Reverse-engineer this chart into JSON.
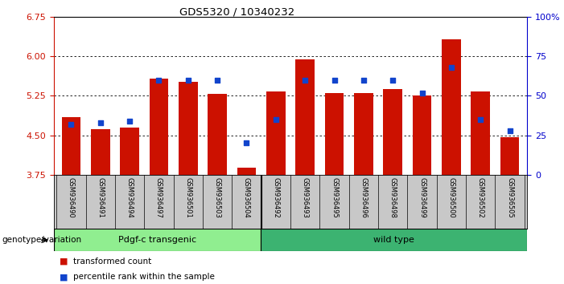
{
  "title": "GDS5320 / 10340232",
  "samples": [
    "GSM936490",
    "GSM936491",
    "GSM936494",
    "GSM936497",
    "GSM936501",
    "GSM936503",
    "GSM936504",
    "GSM936492",
    "GSM936493",
    "GSM936495",
    "GSM936496",
    "GSM936498",
    "GSM936499",
    "GSM936500",
    "GSM936502",
    "GSM936505"
  ],
  "bar_values": [
    4.85,
    4.62,
    4.65,
    5.58,
    5.52,
    5.29,
    3.88,
    5.33,
    5.95,
    5.3,
    5.3,
    5.38,
    5.26,
    6.32,
    5.34,
    4.46
  ],
  "dot_values_pct": [
    32,
    33,
    34,
    60,
    60,
    60,
    20,
    35,
    60,
    60,
    60,
    60,
    52,
    68,
    35,
    28
  ],
  "ylim_left": [
    3.75,
    6.75
  ],
  "ylim_right": [
    0,
    100
  ],
  "yticks_left": [
    3.75,
    4.5,
    5.25,
    6.0,
    6.75
  ],
  "yticks_right": [
    0,
    25,
    50,
    75,
    100
  ],
  "bar_color": "#cc1100",
  "dot_color": "#1144cc",
  "transgenic_count": 7,
  "wildtype_count": 9,
  "transgenic_label": "Pdgf-c transgenic",
  "wildtype_label": "wild type",
  "genotype_label": "genotype/variation",
  "legend_bar": "transformed count",
  "legend_dot": "percentile rank within the sample",
  "bar_bottom": 3.75,
  "right_axis_color": "#0000cc",
  "left_axis_color": "#cc1100",
  "tick_area_bg": "#c8c8c8",
  "transgenic_bg": "#90ee90",
  "wildtype_bg": "#3cb371"
}
